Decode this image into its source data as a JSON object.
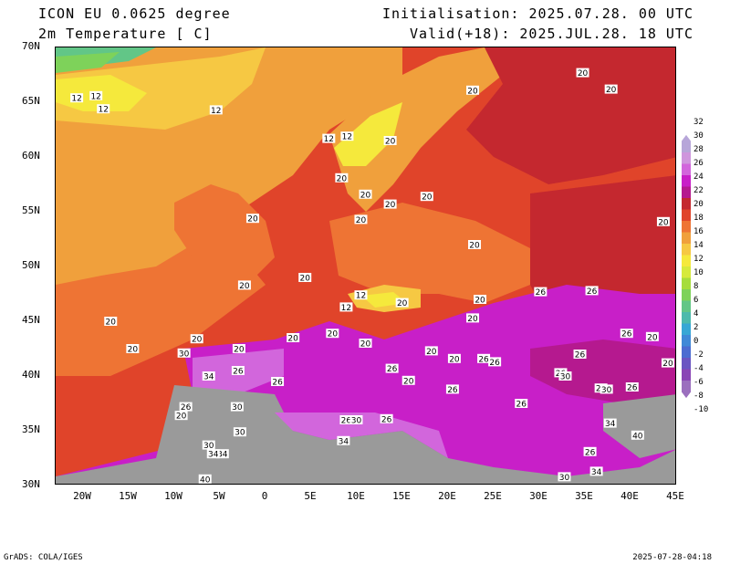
{
  "header": {
    "model": "ICON EU 0.0625 degree",
    "variable": "2m Temperature [ C]",
    "init": "Initialisation: 2025.07.28. 00 UTC",
    "valid": "Valid(+18): 2025.JUL.28. 18 UTC"
  },
  "map": {
    "lat_labels": [
      "70N",
      "65N",
      "60N",
      "55N",
      "50N",
      "45N",
      "40N",
      "35N",
      "30N"
    ],
    "lon_labels": [
      "20W",
      "15W",
      "10W",
      "5W",
      "0",
      "5E",
      "10E",
      "15E",
      "20E",
      "25E",
      "30E",
      "35E",
      "40E",
      "45E"
    ],
    "contour_labels": [
      {
        "text": "12",
        "lat": 65.4,
        "lon": -20.2
      },
      {
        "text": "12",
        "lat": 65.6,
        "lon": -18.1
      },
      {
        "text": "12",
        "lat": 64.4,
        "lon": -17.3
      },
      {
        "text": "12",
        "lat": 64.3,
        "lon": -5.0
      },
      {
        "text": "12",
        "lat": 61.7,
        "lon": 7.3
      },
      {
        "text": "12",
        "lat": 61.9,
        "lon": 9.3
      },
      {
        "text": "20",
        "lat": 61.5,
        "lon": 14.0
      },
      {
        "text": "20",
        "lat": 58.1,
        "lon": 8.7
      },
      {
        "text": "20",
        "lat": 56.6,
        "lon": 11.3
      },
      {
        "text": "20",
        "lat": 55.7,
        "lon": 14.0
      },
      {
        "text": "20",
        "lat": 56.4,
        "lon": 18.0
      },
      {
        "text": "20",
        "lat": 66.1,
        "lon": 23.0
      },
      {
        "text": "20",
        "lat": 67.7,
        "lon": 35.0
      },
      {
        "text": "20",
        "lat": 66.2,
        "lon": 38.1
      },
      {
        "text": "20",
        "lat": 54.4,
        "lon": -1.0
      },
      {
        "text": "20",
        "lat": 54.3,
        "lon": 10.8
      },
      {
        "text": "20",
        "lat": 52.0,
        "lon": 23.2
      },
      {
        "text": "20",
        "lat": 49.0,
        "lon": 4.7
      },
      {
        "text": "20",
        "lat": 48.3,
        "lon": -1.9
      },
      {
        "text": "12",
        "lat": 47.4,
        "lon": 10.8
      },
      {
        "text": "12",
        "lat": 46.3,
        "lon": 9.2
      },
      {
        "text": "20",
        "lat": 46.7,
        "lon": 15.3
      },
      {
        "text": "20",
        "lat": 47.0,
        "lon": 23.8
      },
      {
        "text": "20",
        "lat": 45.3,
        "lon": 23.0
      },
      {
        "text": "26",
        "lat": 47.7,
        "lon": 30.4
      },
      {
        "text": "26",
        "lat": 47.8,
        "lon": 36.0
      },
      {
        "text": "20",
        "lat": 54.1,
        "lon": 43.8
      },
      {
        "text": "20",
        "lat": 45.0,
        "lon": -16.5
      },
      {
        "text": "20",
        "lat": 43.5,
        "lon": 3.4
      },
      {
        "text": "20",
        "lat": 43.9,
        "lon": 7.7
      },
      {
        "text": "20",
        "lat": 43.4,
        "lon": -7.1
      },
      {
        "text": "20",
        "lat": 43.0,
        "lon": 11.3
      },
      {
        "text": "20",
        "lat": 42.5,
        "lon": -14.1
      },
      {
        "text": "20",
        "lat": 42.5,
        "lon": -2.5
      },
      {
        "text": "20",
        "lat": 42.3,
        "lon": 18.5
      },
      {
        "text": "20",
        "lat": 41.6,
        "lon": 21.0
      },
      {
        "text": "26",
        "lat": 41.6,
        "lon": 24.2
      },
      {
        "text": "26",
        "lat": 41.3,
        "lon": 25.4
      },
      {
        "text": "26",
        "lat": 42.0,
        "lon": 34.7
      },
      {
        "text": "26",
        "lat": 43.9,
        "lon": 39.8
      },
      {
        "text": "20",
        "lat": 43.6,
        "lon": 42.6
      },
      {
        "text": "20",
        "lat": 41.2,
        "lon": 44.3
      },
      {
        "text": "30",
        "lat": 42.1,
        "lon": -8.5
      },
      {
        "text": "34",
        "lat": 40.0,
        "lon": -5.8
      },
      {
        "text": "26",
        "lat": 40.5,
        "lon": -2.6
      },
      {
        "text": "26",
        "lat": 39.5,
        "lon": 1.7
      },
      {
        "text": "26",
        "lat": 40.7,
        "lon": 14.2
      },
      {
        "text": "20",
        "lat": 39.6,
        "lon": 16.0
      },
      {
        "text": "26",
        "lat": 38.8,
        "lon": 20.8
      },
      {
        "text": "26",
        "lat": 37.5,
        "lon": 28.3
      },
      {
        "text": "26",
        "lat": 40.3,
        "lon": 32.6
      },
      {
        "text": "30",
        "lat": 40.0,
        "lon": 33.1
      },
      {
        "text": "26",
        "lat": 38.9,
        "lon": 37.0
      },
      {
        "text": "30",
        "lat": 38.8,
        "lon": 37.6
      },
      {
        "text": "26",
        "lat": 39.0,
        "lon": 40.4
      },
      {
        "text": "26",
        "lat": 37.2,
        "lon": -8.3
      },
      {
        "text": "20",
        "lat": 36.4,
        "lon": -8.8
      },
      {
        "text": "30",
        "lat": 37.2,
        "lon": -2.7
      },
      {
        "text": "26",
        "lat": 36.0,
        "lon": 9.2
      },
      {
        "text": "30",
        "lat": 36.0,
        "lon": 10.3
      },
      {
        "text": "26",
        "lat": 36.1,
        "lon": 13.6
      },
      {
        "text": "34",
        "lat": 35.7,
        "lon": 38.0
      },
      {
        "text": "30",
        "lat": 34.9,
        "lon": -2.4
      },
      {
        "text": "40",
        "lat": 34.6,
        "lon": 41.0
      },
      {
        "text": "34",
        "lat": 34.1,
        "lon": 8.9
      },
      {
        "text": "30",
        "lat": 33.7,
        "lon": -5.8
      },
      {
        "text": "34",
        "lat": 32.9,
        "lon": -4.3
      },
      {
        "text": "34",
        "lat": 32.9,
        "lon": -5.3
      },
      {
        "text": "26",
        "lat": 33.1,
        "lon": 35.8
      },
      {
        "text": "34",
        "lat": 31.3,
        "lon": 36.5
      },
      {
        "text": "30",
        "lat": 30.8,
        "lon": 33.0
      },
      {
        "text": "40",
        "lat": 30.6,
        "lon": -6.2
      }
    ]
  },
  "colorbar": {
    "labels": [
      "32",
      "30",
      "28",
      "26",
      "24",
      "22",
      "20",
      "18",
      "16",
      "14",
      "12",
      "10",
      "8",
      "6",
      "4",
      "2",
      "0",
      "-2",
      "-4",
      "-6",
      "-8",
      "-10"
    ],
    "colors": [
      "#b7a6d9",
      "#cf96dd",
      "#d266dc",
      "#c81fc8",
      "#b5198f",
      "#c4282f",
      "#e0442a",
      "#ee7434",
      "#f0a03c",
      "#f6c843",
      "#f5e93c",
      "#d6ea3c",
      "#a6dd3c",
      "#7ed25a",
      "#62c687",
      "#4dbaac",
      "#37a7d5",
      "#3f89d7",
      "#4b6cd1",
      "#6a55c2",
      "#8a45b5",
      "#9b6fbe"
    ]
  },
  "footer": {
    "left": "GrADS: COLA/IGES",
    "right": "2025-07-28-04:18"
  }
}
